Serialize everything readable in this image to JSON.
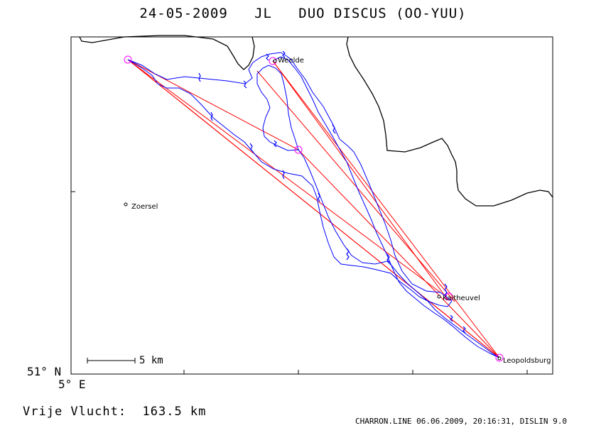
{
  "header": {
    "title": "24-05-2009   JL   DUO DISCUS (OO-YUU)"
  },
  "axes": {
    "lat_label": "51° N",
    "lon_label": "5° E"
  },
  "scale_bar": {
    "label": "5 km"
  },
  "places": [
    {
      "key": "weelde",
      "name": "Weelde"
    },
    {
      "key": "zoersel",
      "name": "Zoersel"
    },
    {
      "key": "kaitheuvel",
      "name": "Kaitheuvel"
    },
    {
      "key": "leopoldsburg",
      "name": "Leopoldsburg"
    }
  ],
  "footer": {
    "distance": "Vrije Vlucht:  163.5 km",
    "credits": "CHARRON.LINE 06.06.2009, 20:16:31, DISLIN 9.0"
  },
  "colors": {
    "flight_track": "#0000ff",
    "task_lines": "#ff0000",
    "turnpoints": "#ff00ff",
    "border": "#000000"
  }
}
